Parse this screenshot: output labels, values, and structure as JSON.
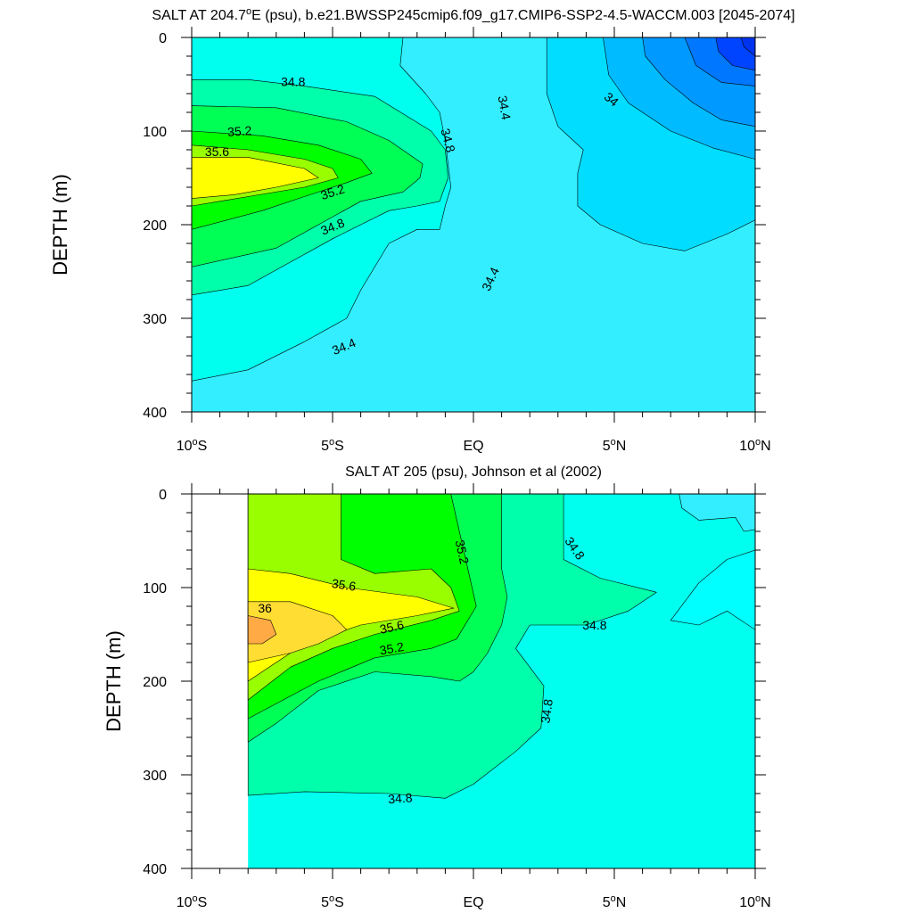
{
  "chart_data": [
    {
      "type": "contour",
      "title": "SALT AT 204.7°E (psu), b.e21.BWSSP245cmip6.f09_g17.CMIP6-SSP2-4.5-WACCM.003 [2045-2074]",
      "title_parts": {
        "pre": "SALT AT 204.7",
        "sup": "o",
        "post": "E (psu), b.e21.BWSSP245cmip6.f09_g17.CMIP6-SSP2-4.5-WACCM.003 [2045-2074]"
      },
      "ylabel": "DEPTH (m)",
      "xlim": [
        -10,
        10
      ],
      "ylim": [
        0,
        400
      ],
      "y_inverted": true,
      "x_ticks": [
        {
          "v": -10,
          "pre": "10",
          "sup": "o",
          "post": "S"
        },
        {
          "v": -5,
          "pre": "5",
          "sup": "o",
          "post": "S"
        },
        {
          "v": 0,
          "pre": "EQ",
          "sup": "",
          "post": ""
        },
        {
          "v": 5,
          "pre": "5",
          "sup": "o",
          "post": "N"
        },
        {
          "v": 10,
          "pre": "10",
          "sup": "o",
          "post": "N"
        }
      ],
      "y_ticks": [
        "0",
        "100",
        "200",
        "300",
        "400"
      ],
      "y_tick_values": [
        0,
        100,
        200,
        300,
        400
      ],
      "background_color": "#33EEFF",
      "regions": [
        {
          "value": 34.6,
          "color": "#00FFEE",
          "pts": [
            [
              -10,
              0
            ],
            [
              -2.5,
              0
            ],
            [
              -2.6,
              30
            ],
            [
              -1.7,
              60
            ],
            [
              -1.2,
              80
            ],
            [
              -1.0,
              110
            ],
            [
              -0.8,
              160
            ],
            [
              -1.0,
              180
            ],
            [
              -1.2,
              205
            ],
            [
              -2.0,
              205
            ],
            [
              -3.0,
              220
            ],
            [
              -4.0,
              270
            ],
            [
              -4.5,
              300
            ],
            [
              -6.0,
              325
            ],
            [
              -8.0,
              355
            ],
            [
              -10,
              367
            ]
          ]
        },
        {
          "value": 34.8,
          "color": "#00FFAA",
          "pts": [
            [
              -10,
              45
            ],
            [
              -8.0,
              45
            ],
            [
              -6.0,
              52
            ],
            [
              -3.5,
              63
            ],
            [
              -1.5,
              100
            ],
            [
              -1.0,
              120
            ],
            [
              -0.9,
              150
            ],
            [
              -1.2,
              175
            ],
            [
              -2.0,
              180
            ],
            [
              -3.0,
              185
            ],
            [
              -4.0,
              200
            ],
            [
              -5.0,
              215
            ],
            [
              -6.5,
              240
            ],
            [
              -8.0,
              265
            ],
            [
              -10,
              275
            ]
          ]
        },
        {
          "value": 35.0,
          "color": "#00FF55",
          "pts": [
            [
              -10,
              73
            ],
            [
              -7.0,
              75
            ],
            [
              -4.5,
              90
            ],
            [
              -3.0,
              110
            ],
            [
              -1.8,
              135
            ],
            [
              -1.9,
              150
            ],
            [
              -2.5,
              165
            ],
            [
              -4.0,
              175
            ],
            [
              -5.5,
              200
            ],
            [
              -7.0,
              225
            ],
            [
              -10,
              245
            ]
          ]
        },
        {
          "value": 35.2,
          "color": "#00FF00",
          "pts": [
            [
              -10,
              100
            ],
            [
              -7.5,
              105
            ],
            [
              -5.5,
              115
            ],
            [
              -4.0,
              130
            ],
            [
              -3.6,
              145
            ],
            [
              -4.5,
              155
            ],
            [
              -6.0,
              170
            ],
            [
              -7.5,
              185
            ],
            [
              -10,
              205
            ]
          ]
        },
        {
          "value": 35.4,
          "color": "#99FF00",
          "pts": [
            [
              -10,
              115
            ],
            [
              -8.0,
              120
            ],
            [
              -6.0,
              130
            ],
            [
              -5.0,
              140
            ],
            [
              -4.8,
              150
            ],
            [
              -6.0,
              160
            ],
            [
              -8.0,
              170
            ],
            [
              -10,
              180
            ]
          ]
        },
        {
          "value": 35.6,
          "color": "#FFFF00",
          "pts": [
            [
              -10,
              128
            ],
            [
              -8.0,
              128
            ],
            [
              -6.0,
              140
            ],
            [
              -5.5,
              150
            ],
            [
              -7.0,
              160
            ],
            [
              -8.5,
              168
            ],
            [
              -10,
              172
            ]
          ]
        },
        {
          "value": 34.2,
          "color": "#00DDFF",
          "pts": [
            [
              2.6,
              0
            ],
            [
              10,
              0
            ],
            [
              10,
              195
            ],
            [
              9.0,
              210
            ],
            [
              7.5,
              228
            ],
            [
              6.0,
              220
            ],
            [
              4.5,
              200
            ],
            [
              3.7,
              180
            ],
            [
              3.7,
              145
            ],
            [
              3.9,
              120
            ],
            [
              3.0,
              95
            ],
            [
              2.6,
              60
            ]
          ]
        },
        {
          "value": 34.0,
          "color": "#00BBFF",
          "pts": [
            [
              4.6,
              0
            ],
            [
              10,
              0
            ],
            [
              10,
              130
            ],
            [
              8.5,
              118
            ],
            [
              7.0,
              100
            ],
            [
              5.5,
              70
            ],
            [
              4.8,
              40
            ]
          ]
        },
        {
          "value": 33.8,
          "color": "#0099FF",
          "pts": [
            [
              6.0,
              0
            ],
            [
              10,
              0
            ],
            [
              10,
              95
            ],
            [
              8.8,
              88
            ],
            [
              7.8,
              70
            ],
            [
              6.8,
              45
            ],
            [
              6.1,
              20
            ]
          ]
        },
        {
          "value": 33.6,
          "color": "#0077FF",
          "pts": [
            [
              7.5,
              0
            ],
            [
              10,
              0
            ],
            [
              10,
              52
            ],
            [
              8.8,
              48
            ],
            [
              7.9,
              30
            ]
          ]
        },
        {
          "value": 33.4,
          "color": "#0044FF",
          "pts": [
            [
              8.6,
              0
            ],
            [
              10,
              0
            ],
            [
              10,
              35
            ],
            [
              9.2,
              30
            ],
            [
              8.7,
              15
            ]
          ]
        },
        {
          "value": 33.2,
          "color": "#0033EE",
          "pts": [
            [
              9.5,
              0
            ],
            [
              10,
              0
            ],
            [
              10,
              20
            ],
            [
              9.6,
              10
            ]
          ]
        }
      ],
      "contour_labels": [
        {
          "text": "34.8",
          "x": -6.4,
          "y": 47,
          "rot": 0
        },
        {
          "text": "35.2",
          "x": -8.3,
          "y": 100,
          "rot": -4
        },
        {
          "text": "35.6",
          "x": -9.1,
          "y": 122,
          "rot": 0
        },
        {
          "text": "35.2",
          "x": -5.0,
          "y": 165,
          "rot": -18
        },
        {
          "text": "34.8",
          "x": -5.0,
          "y": 202,
          "rot": -22
        },
        {
          "text": "34.8",
          "x": -0.9,
          "y": 110,
          "rot": 75
        },
        {
          "text": "34.4",
          "x": 1.1,
          "y": 75,
          "rot": 80
        },
        {
          "text": "34.4",
          "x": 0.6,
          "y": 258,
          "rot": -65
        },
        {
          "text": "34.4",
          "x": -4.6,
          "y": 330,
          "rot": -22
        },
        {
          "text": "34",
          "x": 4.9,
          "y": 66,
          "rot": 40
        }
      ]
    },
    {
      "type": "contour",
      "title": "SALT AT 205 (psu), Johnson et al (2002)",
      "title_parts": {
        "pre": "SALT AT 205 (psu), Johnson et al (2002)",
        "sup": "",
        "post": ""
      },
      "ylabel": "DEPTH (m)",
      "xlim": [
        -10,
        10
      ],
      "ylim": [
        0,
        400
      ],
      "y_inverted": true,
      "data_xmin": -8,
      "x_ticks": [
        {
          "v": -10,
          "pre": "10",
          "sup": "o",
          "post": "S"
        },
        {
          "v": -5,
          "pre": "5",
          "sup": "o",
          "post": "S"
        },
        {
          "v": 0,
          "pre": "EQ",
          "sup": "",
          "post": ""
        },
        {
          "v": 5,
          "pre": "5",
          "sup": "o",
          "post": "N"
        },
        {
          "v": 10,
          "pre": "10",
          "sup": "o",
          "post": "N"
        }
      ],
      "y_ticks": [
        "0",
        "100",
        "200",
        "300",
        "400"
      ],
      "y_tick_values": [
        0,
        100,
        200,
        300,
        400
      ],
      "background_color": "#00FFEE",
      "regions": [
        {
          "value": 34.8,
          "color": "#00FFAA",
          "pts": [
            [
              -8,
              0
            ],
            [
              3.2,
              0
            ],
            [
              3.2,
              70
            ],
            [
              4.5,
              90
            ],
            [
              6.5,
              105
            ],
            [
              5.5,
              125
            ],
            [
              4.0,
              140
            ],
            [
              2.0,
              140
            ],
            [
              1.5,
              165
            ],
            [
              2.5,
              205
            ],
            [
              2.4,
              250
            ],
            [
              1.5,
              275
            ],
            [
              0.0,
              310
            ],
            [
              -1.0,
              325
            ],
            [
              -3.0,
              320
            ],
            [
              -6.0,
              318
            ],
            [
              -8,
              322
            ]
          ]
        },
        {
          "value": 35.0,
          "color": "#00FF55",
          "pts": [
            [
              -8,
              0
            ],
            [
              1.0,
              0
            ],
            [
              1.0,
              80
            ],
            [
              1.2,
              110
            ],
            [
              1.0,
              140
            ],
            [
              0.5,
              170
            ],
            [
              0.0,
              190
            ],
            [
              -0.5,
              200
            ],
            [
              -1.5,
              195
            ],
            [
              -3.5,
              190
            ],
            [
              -5.5,
              210
            ],
            [
              -7.0,
              245
            ],
            [
              -8,
              265
            ]
          ]
        },
        {
          "value": 35.2,
          "color": "#00FF00",
          "pts": [
            [
              -8,
              0
            ],
            [
              -0.8,
              0
            ],
            [
              -0.5,
              40
            ],
            [
              -0.2,
              80
            ],
            [
              0.1,
              120
            ],
            [
              -0.6,
              155
            ],
            [
              -1.5,
              165
            ],
            [
              -3.5,
              175
            ],
            [
              -5.5,
              200
            ],
            [
              -8,
              240
            ]
          ]
        },
        {
          "value": 35.4,
          "color": "#99FF00",
          "pts": [
            [
              -8,
              0
            ],
            [
              -4.7,
              0
            ],
            [
              -4.7,
              70
            ],
            [
              -3.5,
              85
            ],
            [
              -1.5,
              80
            ],
            [
              -0.8,
              100
            ],
            [
              -0.5,
              125
            ],
            [
              -1.5,
              135
            ],
            [
              -3.5,
              150
            ],
            [
              -5.0,
              165
            ],
            [
              -6.5,
              185
            ],
            [
              -8,
              220
            ]
          ]
        },
        {
          "value": 35.6,
          "color": "#FFFF00",
          "pts": [
            [
              -8,
              80
            ],
            [
              -6.5,
              85
            ],
            [
              -4.5,
              100
            ],
            [
              -2.0,
              110
            ],
            [
              -0.7,
              122
            ],
            [
              -2.0,
              130
            ],
            [
              -4.0,
              140
            ],
            [
              -6.0,
              160
            ],
            [
              -8,
              200
            ]
          ]
        },
        {
          "value": 35.8,
          "color": "#FFDD33",
          "pts": [
            [
              -8,
              115
            ],
            [
              -6.5,
              115
            ],
            [
              -5.0,
              130
            ],
            [
              -4.5,
              145
            ],
            [
              -5.5,
              160
            ],
            [
              -6.5,
              170
            ],
            [
              -8,
              180
            ]
          ]
        },
        {
          "value": 36.0,
          "color": "#FFAA44",
          "pts": [
            [
              -8,
              130
            ],
            [
              -7.2,
              135
            ],
            [
              -7.0,
              150
            ],
            [
              -7.5,
              160
            ],
            [
              -8,
              160
            ]
          ]
        },
        {
          "value": 34.6,
          "color": "#33EEFF",
          "pts": [
            [
              10,
              0
            ],
            [
              7.3,
              0
            ],
            [
              7.4,
              15
            ],
            [
              8.0,
              28
            ],
            [
              9.3,
              25
            ],
            [
              9.6,
              40
            ],
            [
              10,
              38
            ]
          ]
        },
        {
          "value": 34.6,
          "color": "#00FFFF",
          "pts": [
            [
              10,
              60
            ],
            [
              9.0,
              70
            ],
            [
              8.0,
              95
            ],
            [
              7.0,
              135
            ],
            [
              8.0,
              140
            ],
            [
              9.0,
              125
            ],
            [
              10,
              145
            ]
          ]
        }
      ],
      "contour_labels": [
        {
          "text": "35.2",
          "x": -0.4,
          "y": 62,
          "rot": 78
        },
        {
          "text": "34.8",
          "x": 3.6,
          "y": 58,
          "rot": 55
        },
        {
          "text": "35.6",
          "x": -4.6,
          "y": 97,
          "rot": 8
        },
        {
          "text": "36",
          "x": -7.4,
          "y": 122,
          "rot": 0
        },
        {
          "text": "35.6",
          "x": -2.9,
          "y": 142,
          "rot": -12
        },
        {
          "text": "35.2",
          "x": -2.9,
          "y": 165,
          "rot": -10
        },
        {
          "text": "34.8",
          "x": 4.3,
          "y": 140,
          "rot": 0
        },
        {
          "text": "34.8",
          "x": 2.6,
          "y": 232,
          "rot": -82
        },
        {
          "text": "34.8",
          "x": -2.6,
          "y": 325,
          "rot": -4
        }
      ]
    }
  ]
}
